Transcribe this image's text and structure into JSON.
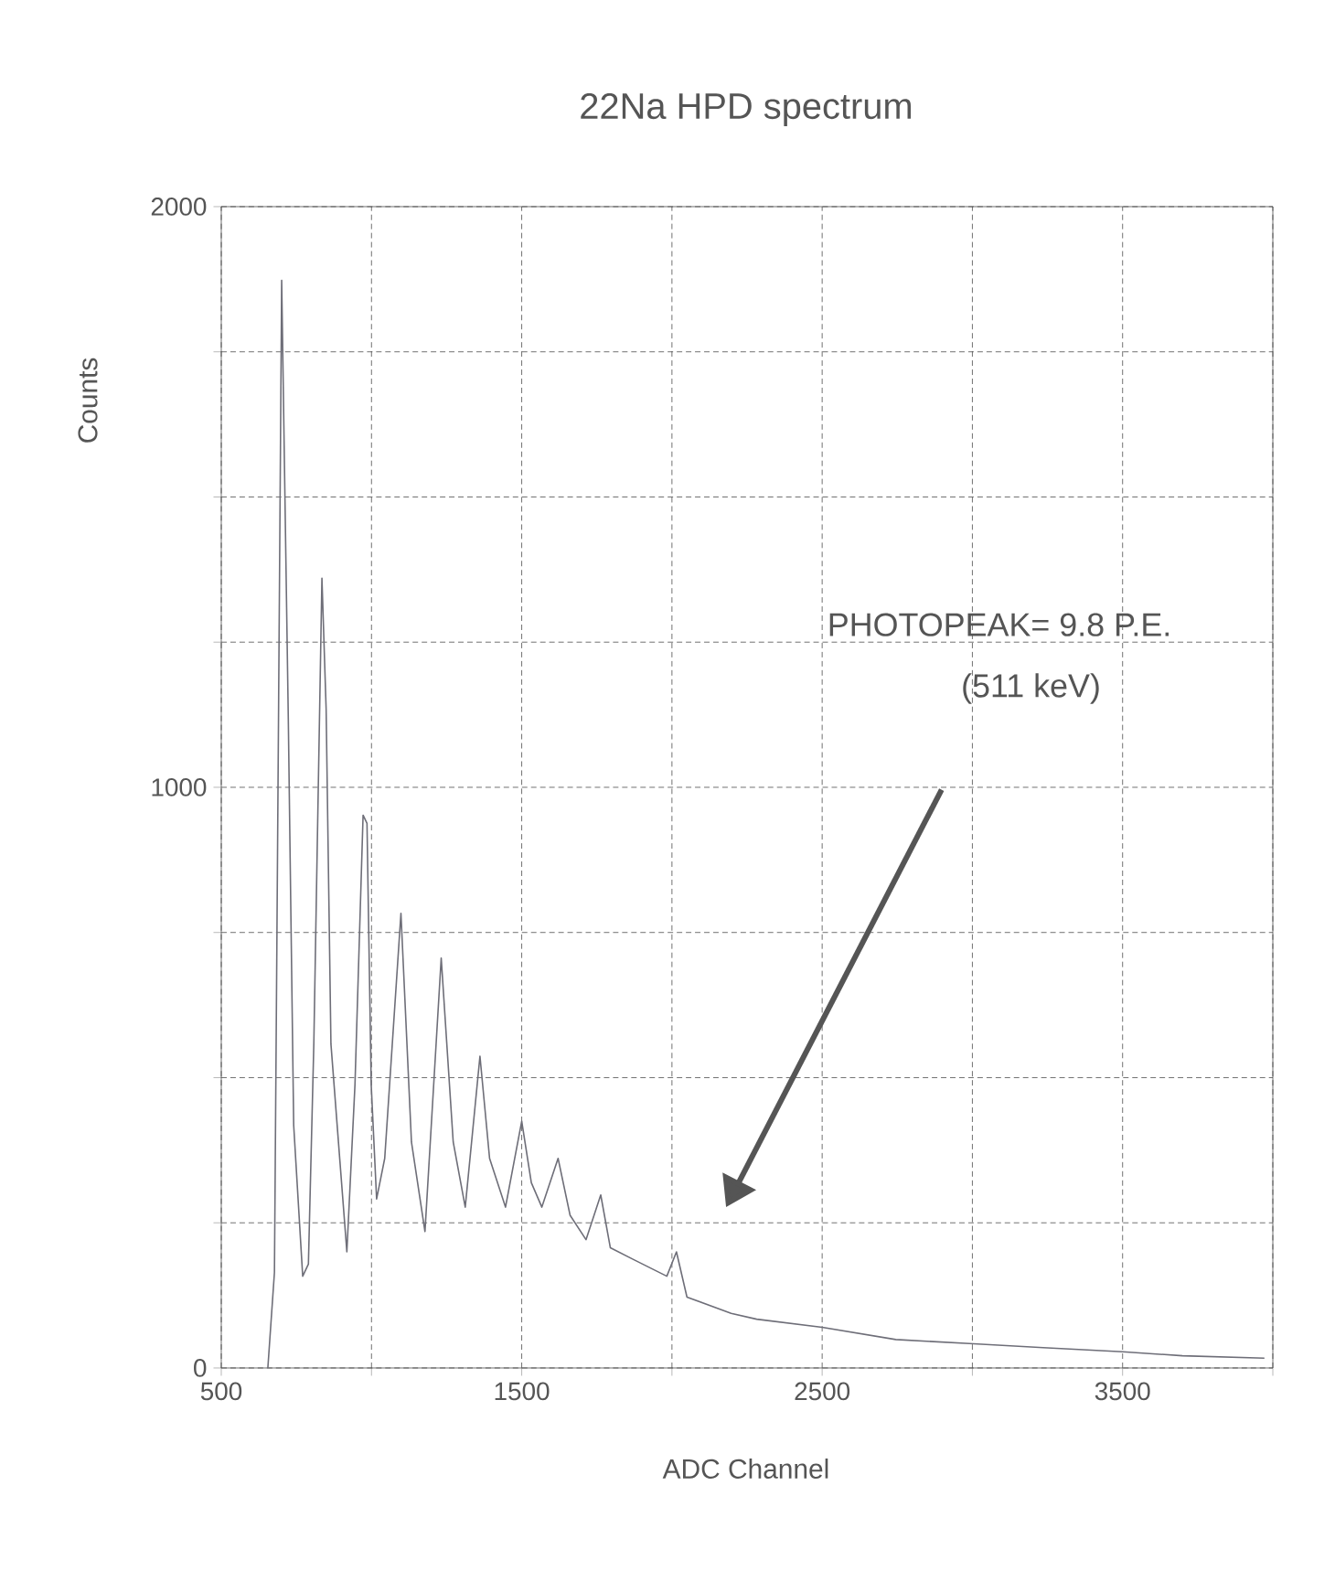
{
  "chart_data": {
    "type": "line",
    "title": "22Na HPD spectrum",
    "xlabel": "ADC Channel",
    "ylabel": "Counts",
    "color": "#6e6e78",
    "x": [
      655,
      677,
      685,
      701,
      709,
      723,
      741,
      771,
      790,
      808,
      835,
      849,
      865,
      918,
      945,
      972,
      985,
      999,
      1017,
      1044,
      1098,
      1133,
      1178,
      1232,
      1272,
      1312,
      1361,
      1393,
      1446,
      1500,
      1532,
      1567,
      1621,
      1661,
      1714,
      1763,
      1795,
      1875,
      1983,
      2015,
      2050,
      2197,
      2282,
      2500,
      2745,
      2990,
      3236,
      3500,
      3699,
      3972
    ],
    "values": [
      0,
      165,
      727,
      1873,
      1599,
      1121,
      418,
      158,
      179,
      558,
      1360,
      1135,
      558,
      200,
      488,
      952,
      938,
      488,
      291,
      361,
      783,
      389,
      235,
      706,
      389,
      277,
      537,
      361,
      277,
      425,
      319,
      277,
      361,
      263,
      221,
      298,
      207,
      186,
      158,
      200,
      122,
      94,
      84,
      70,
      49,
      42,
      35,
      28,
      21,
      17
    ],
    "xlim": [
      500,
      4000
    ],
    "ylim": [
      0,
      2000
    ],
    "xticks": [
      500,
      {
        "value": 1000,
        "label": null
      },
      1500,
      {
        "value": 2000,
        "label": null
      },
      2500,
      {
        "value": 3000,
        "label": null
      },
      3500,
      {
        "value": 4000,
        "label": null
      }
    ],
    "yticks": [
      0,
      {
        "value": 250,
        "label": null
      },
      {
        "value": 500,
        "label": null
      },
      {
        "value": 750,
        "label": null
      },
      1000,
      {
        "value": 1250,
        "label": null
      },
      {
        "value": 1500,
        "label": null
      },
      {
        "value": 1750,
        "label": null
      },
      2000
    ],
    "grid": true,
    "annotations": [
      "PHOTOPEAK= 9.8 P.E.",
      "(511 keV)"
    ]
  }
}
